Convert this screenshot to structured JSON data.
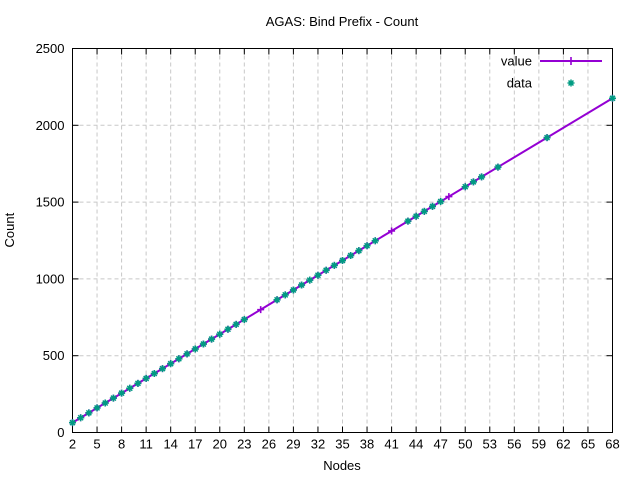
{
  "chart_data": {
    "type": "line",
    "title": "AGAS: Bind Prefix - Count",
    "xlabel": "Nodes",
    "ylabel": "Count",
    "xlim": [
      2,
      68
    ],
    "ylim": [
      0,
      2500
    ],
    "x_ticks": [
      2,
      5,
      8,
      11,
      14,
      17,
      20,
      23,
      26,
      29,
      32,
      35,
      38,
      41,
      44,
      47,
      50,
      53,
      56,
      59,
      62,
      65,
      68
    ],
    "y_ticks": [
      0,
      500,
      1000,
      1500,
      2000,
      2500
    ],
    "grid": true,
    "grid_color": "#c8c8c8",
    "legend_position": "top-right-inside",
    "series": [
      {
        "name": "value",
        "type": "line",
        "marker": "plus",
        "color": "#9400d3",
        "x": [
          2,
          3,
          4,
          5,
          6,
          7,
          8,
          9,
          10,
          11,
          12,
          13,
          14,
          15,
          16,
          17,
          18,
          19,
          20,
          21,
          22,
          23,
          25,
          27,
          28,
          29,
          30,
          31,
          32,
          33,
          34,
          35,
          36,
          37,
          38,
          39,
          41,
          43,
          44,
          45,
          46,
          47,
          48,
          50,
          51,
          52,
          54,
          60,
          68
        ],
        "y": [
          64,
          96,
          128,
          160,
          192,
          224,
          256,
          288,
          320,
          352,
          384,
          416,
          448,
          480,
          512,
          544,
          576,
          608,
          640,
          672,
          704,
          736,
          800,
          864,
          896,
          928,
          960,
          992,
          1024,
          1056,
          1088,
          1120,
          1152,
          1184,
          1216,
          1248,
          1312,
          1376,
          1408,
          1440,
          1472,
          1504,
          1536,
          1600,
          1632,
          1664,
          1728,
          1920,
          2176
        ]
      },
      {
        "name": "data",
        "type": "scatter",
        "marker": "asterisk",
        "color": "#009b82",
        "x": [
          2,
          3,
          4,
          5,
          6,
          7,
          8,
          9,
          10,
          11,
          12,
          13,
          14,
          15,
          16,
          17,
          18,
          19,
          20,
          21,
          22,
          23,
          27,
          28,
          29,
          30,
          31,
          32,
          33,
          34,
          35,
          36,
          37,
          38,
          39,
          43,
          44,
          45,
          46,
          47,
          50,
          51,
          52,
          54,
          60,
          68
        ],
        "y": [
          64,
          96,
          128,
          160,
          192,
          224,
          256,
          288,
          320,
          352,
          384,
          416,
          448,
          480,
          512,
          544,
          576,
          608,
          640,
          672,
          704,
          736,
          864,
          896,
          928,
          960,
          992,
          1024,
          1056,
          1088,
          1120,
          1152,
          1184,
          1216,
          1248,
          1376,
          1408,
          1440,
          1472,
          1504,
          1600,
          1632,
          1664,
          1728,
          1920,
          2176
        ]
      }
    ]
  }
}
